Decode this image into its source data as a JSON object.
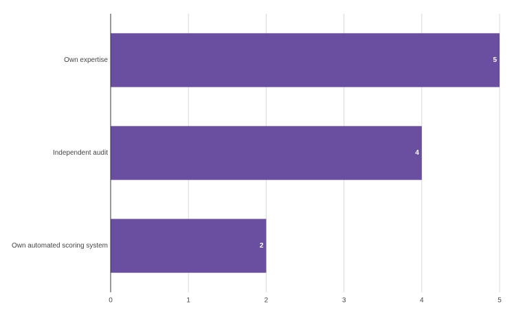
{
  "chart_data": {
    "type": "bar",
    "categories": [
      "Own expertise",
      "Independent audit",
      "Own automated scoring system"
    ],
    "values": [
      5,
      4,
      2
    ],
    "color": "#6a4fa0",
    "xlim": [
      0,
      5
    ],
    "xticks": [
      0,
      1,
      2,
      3,
      4,
      5
    ],
    "grid": true
  }
}
